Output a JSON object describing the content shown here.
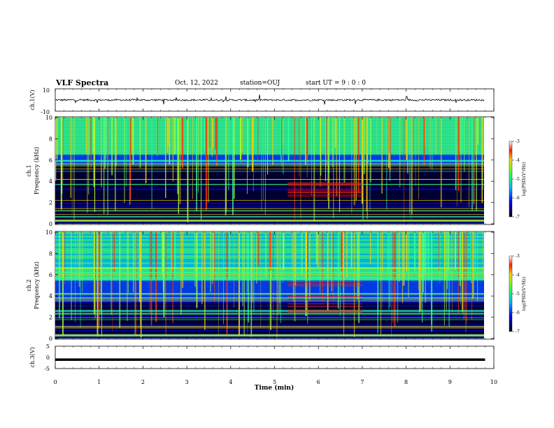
{
  "header": {
    "title": "VLF Spectra",
    "date": "Oct. 12, 2022",
    "station": "station=OUJ",
    "start_ut": "start UT =  9 : 0 : 0"
  },
  "chart_data": [
    {
      "type": "line",
      "name": "ch1-waveform",
      "ylabel": "ch.1(V)",
      "ylim": [
        -10,
        10
      ],
      "yticks": [
        10,
        -10
      ],
      "xlim": [
        0,
        10
      ],
      "trace": "noisy waveform centered near 0 V with small spikes",
      "line_color": "#000000"
    },
    {
      "type": "heatmap",
      "name": "ch1-spectrogram",
      "ylabel_top": "ch.1",
      "ylabel": "Frequency (kHz)",
      "ylim": [
        0,
        10
      ],
      "yticks": [
        0,
        2,
        4,
        6,
        8,
        10
      ],
      "xlim": [
        0,
        10
      ],
      "colorbar": {
        "label": "log(PSD)(V²/Hz)",
        "range": [
          -7,
          -3
        ],
        "ticks": [
          -3,
          -4,
          -5,
          -6,
          -7
        ]
      }
    },
    {
      "type": "heatmap",
      "name": "ch2-spectrogram",
      "ylabel_top": "ch.2",
      "ylabel": "Frequency (kHz)",
      "ylim": [
        0,
        10
      ],
      "yticks": [
        0,
        2,
        4,
        6,
        8,
        10
      ],
      "xlim": [
        0,
        10
      ],
      "colorbar": {
        "label": "log(PSD)(V²/Hz)",
        "range": [
          -7,
          -3
        ],
        "ticks": [
          -3,
          -4,
          -5,
          -6,
          -7
        ]
      }
    },
    {
      "type": "line",
      "name": "ch3-waveform",
      "ylabel": "ch.3(V)",
      "ylim": [
        -5,
        5
      ],
      "yticks": [
        5,
        0,
        -5
      ],
      "xlim": [
        0,
        10
      ],
      "trace": "flat thick line near -1 V",
      "line_color": "#000000"
    }
  ],
  "xaxis": {
    "label": "Time (min)",
    "ticks": [
      0,
      1,
      2,
      3,
      4,
      5,
      6,
      7,
      8,
      9,
      10
    ]
  },
  "colormap": [
    "#000000",
    "#000033",
    "#0000aa",
    "#0044ff",
    "#00ccff",
    "#33ff99",
    "#aaff33",
    "#ffcc00",
    "#ff3300",
    "#ff0000",
    "#ffffff"
  ]
}
